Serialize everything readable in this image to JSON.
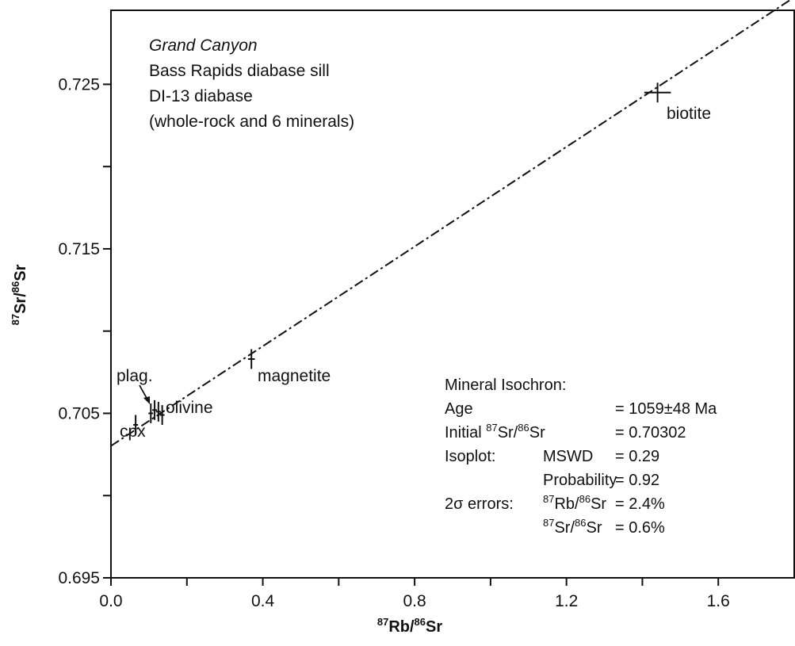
{
  "chart_data": {
    "type": "scatter",
    "xlabel": {
      "pre": "",
      "sup1": "87",
      "mid": "Rb/",
      "sup2": "86",
      "post": "Sr"
    },
    "ylabel": {
      "pre": "",
      "sup1": "87",
      "mid": "Sr/",
      "sup2": "86",
      "post": "Sr"
    },
    "xlim": [
      0.0,
      1.8
    ],
    "ylim": [
      0.695,
      0.7295
    ],
    "x_ticks": [
      {
        "value": 0.0,
        "label": "0.0"
      },
      {
        "value": 0.4,
        "label": "0.4"
      },
      {
        "value": 0.8,
        "label": "0.8"
      },
      {
        "value": 1.2,
        "label": "1.2"
      },
      {
        "value": 1.6,
        "label": "1.6"
      }
    ],
    "x_minor_ticks": [
      0.2,
      0.6,
      1.0,
      1.4
    ],
    "y_ticks": [
      {
        "value": 0.695,
        "label": "0.695"
      },
      {
        "value": 0.705,
        "label": "0.705"
      },
      {
        "value": 0.715,
        "label": "0.715"
      },
      {
        "value": 0.725,
        "label": "0.725"
      }
    ],
    "y_minor_ticks": [
      0.7,
      0.71,
      0.72
    ],
    "isochron_line": {
      "intercept": 0.70302,
      "slope": 0.01515,
      "style": "dash-dot"
    },
    "points": [
      {
        "name": "cpx",
        "x": 0.065,
        "y": 0.7043,
        "x_err": 0.002,
        "y_err": 0.0006
      },
      {
        "name": "whole-rock",
        "x": 0.105,
        "y": 0.705,
        "x_err": 0.002,
        "y_err": 0.0006
      },
      {
        "name": "plag.",
        "x": 0.115,
        "y": 0.7052,
        "x_err": 0.002,
        "y_err": 0.0006
      },
      {
        "name": "mineral",
        "x": 0.125,
        "y": 0.7051,
        "x_err": 0.002,
        "y_err": 0.0006
      },
      {
        "name": "olivine",
        "x": 0.135,
        "y": 0.7049,
        "x_err": 0.002,
        "y_err": 0.0006
      },
      {
        "name": "magnetite",
        "x": 0.37,
        "y": 0.7083,
        "x_err": 0.009,
        "y_err": 0.0006
      },
      {
        "name": "biotite",
        "x": 1.44,
        "y": 0.7245,
        "x_err": 0.035,
        "y_err": 0.0006
      }
    ],
    "point_labels": [
      {
        "text": "cpx",
        "for": "cpx"
      },
      {
        "text": "plag.",
        "for": "plag."
      },
      {
        "text": "olivine",
        "for": "olivine"
      },
      {
        "text": "magnetite",
        "for": "magnetite"
      },
      {
        "text": "biotite",
        "for": "biotite"
      }
    ],
    "annotation_lines": [
      {
        "text": "Grand Canyon",
        "italic": true
      },
      {
        "text": "Bass Rapids diabase sill",
        "italic": false
      },
      {
        "text": "DI-13 diabase",
        "italic": false
      },
      {
        "text": "(whole-rock and 6 minerals)",
        "italic": false
      }
    ],
    "stats": {
      "heading": "Mineral Isochron:",
      "age_label": "Age",
      "age_value": "= 1059±48 Ma",
      "initial_label_pre": "Initial ",
      "initial_label_sup1": "87",
      "initial_label_mid": "Sr/",
      "initial_label_sup2": "86",
      "initial_label_post": "Sr",
      "initial_value": "= 0.70302",
      "isoplot_label": "Isoplot:",
      "mswd_label": "MSWD",
      "mswd_value": "= 0.29",
      "prob_label": "Probability",
      "prob_value": "= 0.92",
      "errors_label": "2σ errors:",
      "rb_err_sup1": "87",
      "rb_err_mid": "Rb/",
      "rb_err_sup2": "86",
      "rb_err_post": "Sr",
      "rb_err_value": "= 2.4%",
      "sr_err_sup1": "87",
      "sr_err_mid": "Sr/",
      "sr_err_sup2": "86",
      "sr_err_post": "Sr",
      "sr_err_value": "= 0.6%"
    }
  }
}
